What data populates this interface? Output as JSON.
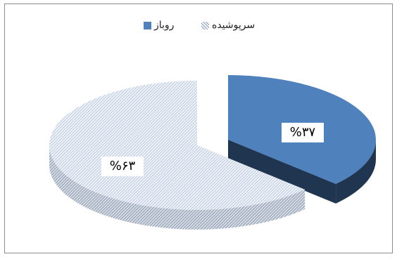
{
  "chart_data": {
    "type": "pie",
    "style": "3d-exploded",
    "legend_position": "top",
    "slices": [
      {
        "name": "روباز",
        "value": 37,
        "label": "%۳۷",
        "color": "#4f81bd",
        "side_color": "#1f3550"
      },
      {
        "name": "سرپوشیده",
        "value": 63,
        "label": "%۶۳",
        "color": "#c8d6e8",
        "side_color": "#8a9bb0",
        "pattern": "hatched"
      }
    ]
  }
}
